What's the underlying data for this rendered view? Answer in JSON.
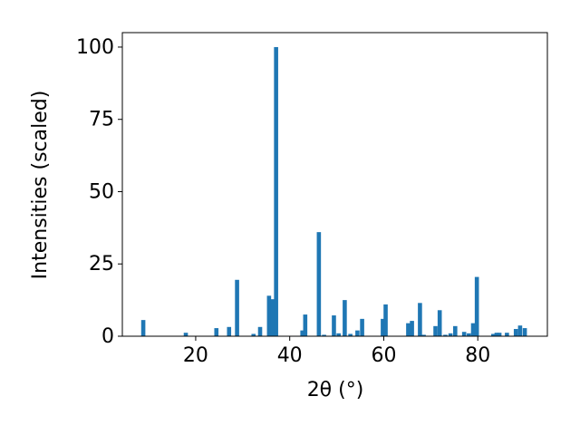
{
  "chart_data": {
    "type": "bar",
    "x_label": "2θ (°)",
    "y_label": "Intensities (scaled)",
    "x": [
      8.85,
      17.9,
      24.4,
      27.1,
      28.8,
      32.3,
      33.7,
      35.6,
      36.4,
      37.1,
      42.7,
      43.3,
      46.2,
      47.3,
      49.4,
      50.4,
      51.7,
      52.9,
      54.4,
      55.4,
      59.8,
      60.4,
      65.2,
      66.0,
      67.7,
      68.5,
      71.0,
      71.9,
      73.1,
      74.2,
      75.2,
      77.1,
      78.1,
      79.0,
      79.8,
      83.3,
      84.0,
      84.6,
      86.2,
      88.1,
      89.0,
      90.0
    ],
    "values": [
      5.6,
      1.2,
      2.8,
      3.2,
      19.5,
      0.8,
      3.2,
      14,
      12.8,
      100,
      2,
      7.5,
      36,
      0.5,
      7.2,
      1,
      12.5,
      0.8,
      2,
      6,
      6,
      11,
      4.5,
      5.3,
      11.5,
      0.5,
      3.5,
      9,
      0.5,
      1,
      3.5,
      1.5,
      1,
      4.5,
      20.5,
      0.8,
      1.2,
      1.2,
      1.2,
      2.5,
      3.7,
      2.8
    ],
    "color": "#1f77b4",
    "xlim": [
      4.4,
      94.8
    ],
    "xticks": [
      20,
      40,
      60,
      80
    ],
    "ylim": [
      0,
      105
    ],
    "yticks": [
      0,
      25,
      50,
      75,
      100
    ],
    "grid": false
  }
}
